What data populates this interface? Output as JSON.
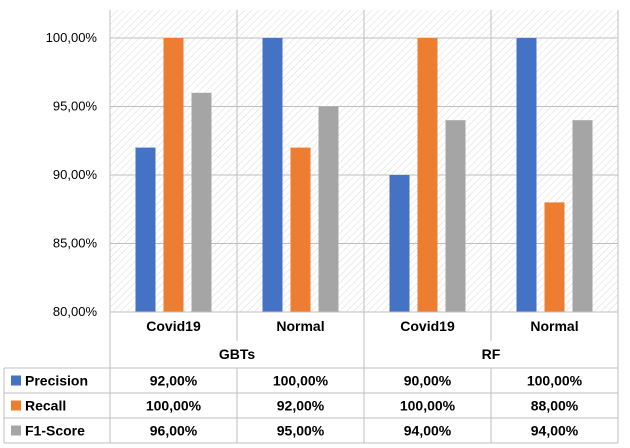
{
  "chart_data": {
    "type": "bar",
    "groups": [
      {
        "label": "GBTs",
        "categories": [
          "Covid19",
          "Normal"
        ]
      },
      {
        "label": "RF",
        "categories": [
          "Covid19",
          "Normal"
        ]
      }
    ],
    "categories": [
      "Covid19",
      "Normal",
      "Covid19",
      "Normal"
    ],
    "series": [
      {
        "name": "Precision",
        "color": "#4472C4",
        "values": [
          92,
          100,
          90,
          100
        ],
        "labels": [
          "92,00%",
          "100,00%",
          "90,00%",
          "100,00%"
        ]
      },
      {
        "name": "Recall",
        "color": "#ED7D31",
        "values": [
          100,
          92,
          100,
          88
        ],
        "labels": [
          "100,00%",
          "92,00%",
          "100,00%",
          "88,00%"
        ]
      },
      {
        "name": "F1-Score",
        "color": "#A5A5A5",
        "values": [
          96,
          95,
          94,
          94
        ],
        "labels": [
          "96,00%",
          "95,00%",
          "94,00%",
          "94,00%"
        ]
      }
    ],
    "ylim": [
      80,
      100
    ],
    "yticks": [
      80,
      85,
      90,
      95,
      100
    ],
    "ytick_labels": [
      "80,00%",
      "85,00%",
      "90,00%",
      "95,00%",
      "100,00%"
    ],
    "grid": true,
    "legend": "data-table",
    "title": "",
    "xlabel": "",
    "ylabel": ""
  }
}
